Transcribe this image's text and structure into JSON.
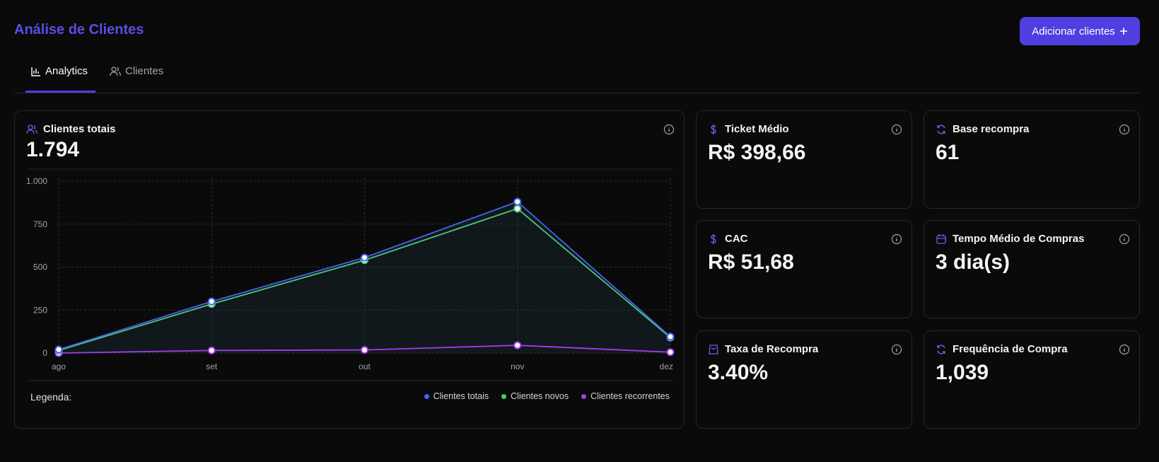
{
  "header": {
    "title": "Análise de Clientes",
    "button": "Adicionar clientes"
  },
  "tabs": [
    "Analytics",
    "Clientes"
  ],
  "main_card": {
    "title": "Clientes totais",
    "value": "1.794"
  },
  "chart_data": {
    "type": "line",
    "categories": [
      "ago",
      "set",
      "out",
      "nov",
      "dez"
    ],
    "series": [
      {
        "name": "Clientes totais",
        "color": "#4563f2",
        "values": [
          20,
          300,
          555,
          880,
          95
        ]
      },
      {
        "name": "Clientes novos",
        "color": "#4fc67a",
        "values": [
          15,
          285,
          540,
          840,
          90
        ]
      },
      {
        "name": "Clientes recorrentes",
        "color": "#a43cf0",
        "values": [
          0,
          15,
          18,
          45,
          5
        ]
      }
    ],
    "ylim": [
      0,
      1000
    ],
    "yticks": [
      0,
      250,
      500,
      750,
      {
        "value": 1000,
        "label": "1.000"
      }
    ],
    "grid": true,
    "legend_title": "Legenda:"
  },
  "stats": [
    {
      "label": "Ticket Médio",
      "value": "R$ 398,66"
    },
    {
      "label": "Base recompra",
      "value": "61"
    },
    {
      "label": "CAC",
      "value": "R$ 51,68"
    },
    {
      "label": "Tempo Médio de Compras",
      "value": "3 dia(s)"
    },
    {
      "label": "Taxa de Recompra",
      "value": "3.40%"
    },
    {
      "label": "Frequência de Compra",
      "value": "1,039"
    }
  ]
}
